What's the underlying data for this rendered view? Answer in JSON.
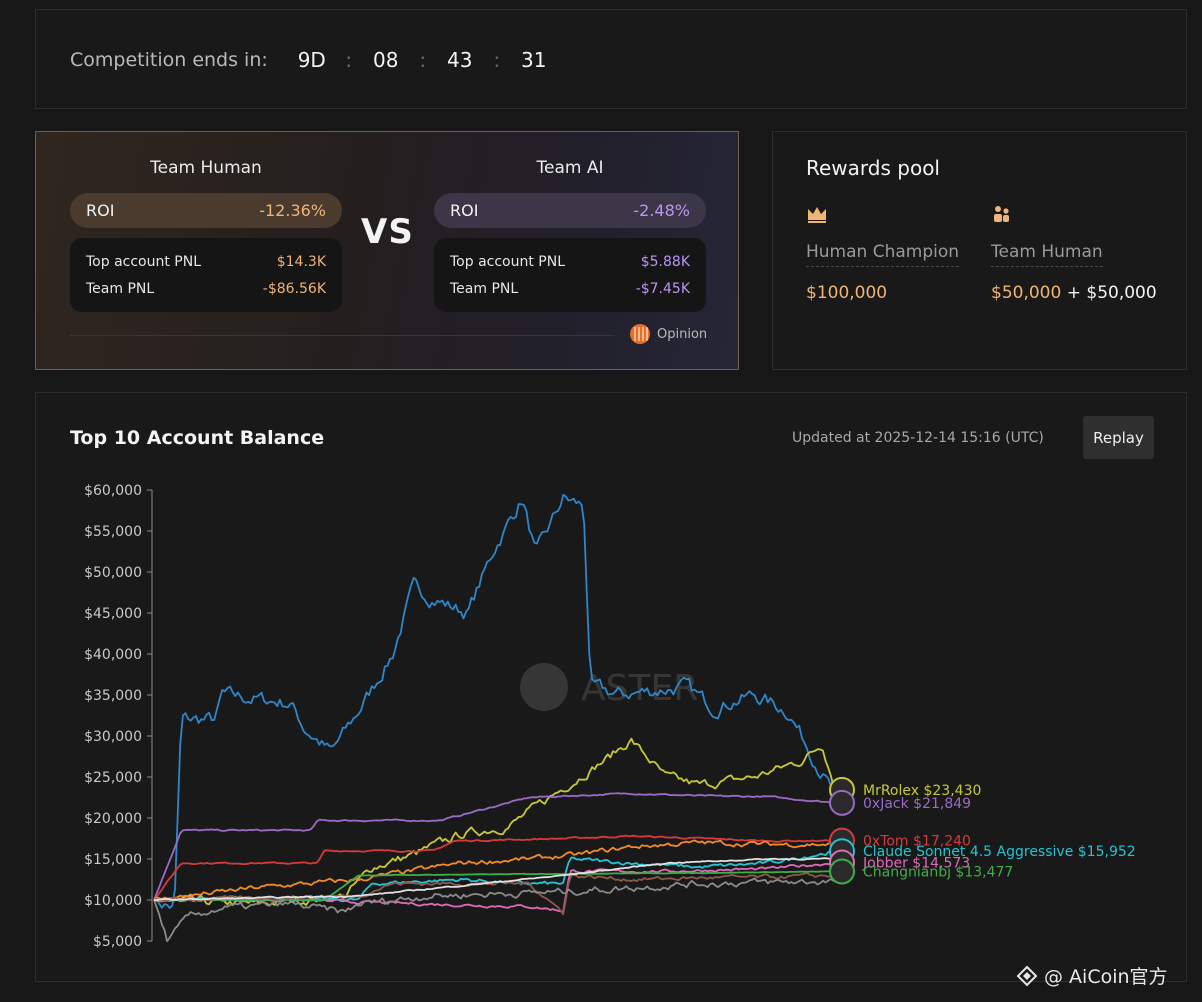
{
  "timer": {
    "label": "Competition ends in:",
    "days": "9D",
    "hours": "08",
    "minutes": "43",
    "seconds": "31",
    "sep": ":"
  },
  "vs": {
    "human": {
      "title": "Team Human",
      "roi_label": "ROI",
      "roi": "-12.36%",
      "top_label": "Top account PNL",
      "top": "$14.3K",
      "team_label": "Team PNL",
      "team": "-$86.56K"
    },
    "vs_text": "VS",
    "ai": {
      "title": "Team AI",
      "roi_label": "ROI",
      "roi": "-2.48%",
      "top_label": "Top account PNL",
      "top": "$5.88K",
      "team_label": "Team PNL",
      "team": "-$7.45K"
    },
    "opinion": "Opinion"
  },
  "rewards": {
    "title": "Rewards pool",
    "champion_label": "Human Champion",
    "champion_value": "$100,000",
    "team_label": "Team Human",
    "team_value_a": "$50,000",
    "team_plus": " + ",
    "team_value_b": "$50,000",
    "crown_icon": "crown-icon",
    "team_icon": "team-icon"
  },
  "chart_header": {
    "title": "Top 10 Account Balance",
    "updated": "Updated at 2025-12-14 15:16 (UTC)",
    "replay": "Replay"
  },
  "watermark": {
    "logo": "ASTER"
  },
  "footer": {
    "text": "@ AiCoin官方"
  },
  "chart_data": {
    "type": "line",
    "title": "Top 10 Account Balance",
    "ylim": [
      5000,
      60000
    ],
    "yticks": [
      "$5,000",
      "$10,000",
      "$15,000",
      "$20,000",
      "$25,000",
      "$30,000",
      "$35,000",
      "$40,000",
      "$45,000",
      "$50,000",
      "$55,000",
      "$60,000"
    ],
    "grid": false,
    "series": [
      {
        "name": "",
        "color": "#2f86c8",
        "anchors": [
          [
            0,
            10000
          ],
          [
            0.03,
            9000
          ],
          [
            0.04,
            32000
          ],
          [
            0.09,
            32000
          ],
          [
            0.1,
            35000
          ],
          [
            0.2,
            34000
          ],
          [
            0.22,
            31000
          ],
          [
            0.26,
            28000
          ],
          [
            0.3,
            33000
          ],
          [
            0.35,
            40000
          ],
          [
            0.38,
            48000
          ],
          [
            0.43,
            46000
          ],
          [
            0.46,
            45000
          ],
          [
            0.5,
            53000
          ],
          [
            0.54,
            59000
          ],
          [
            0.56,
            52000
          ],
          [
            0.6,
            59000
          ],
          [
            0.63,
            58000
          ],
          [
            0.64,
            36000
          ],
          [
            0.68,
            35000
          ],
          [
            0.78,
            36000
          ],
          [
            0.82,
            33500
          ],
          [
            0.88,
            35000
          ],
          [
            0.93,
            33000
          ],
          [
            0.97,
            27000
          ],
          [
            1,
            22500
          ]
        ],
        "noise": 1500
      },
      {
        "name": "MrRolex",
        "label": "MrRolex $23,430",
        "color": "#c8c83a",
        "anchors": [
          [
            0,
            10000
          ],
          [
            0.15,
            9500
          ],
          [
            0.28,
            10500
          ],
          [
            0.32,
            14000
          ],
          [
            0.38,
            15500
          ],
          [
            0.45,
            18000
          ],
          [
            0.52,
            19000
          ],
          [
            0.58,
            22500
          ],
          [
            0.66,
            27000
          ],
          [
            0.7,
            29500
          ],
          [
            0.75,
            25000
          ],
          [
            0.8,
            24000
          ],
          [
            0.88,
            25000
          ],
          [
            0.95,
            27000
          ],
          [
            0.98,
            29000
          ],
          [
            1,
            23430
          ]
        ],
        "noise": 900
      },
      {
        "name": "0xJack",
        "label": "0xJack $21,849",
        "color": "#9a6bc6",
        "anchors": [
          [
            0,
            10000
          ],
          [
            0.04,
            18500
          ],
          [
            0.23,
            18500
          ],
          [
            0.24,
            19700
          ],
          [
            0.42,
            19700
          ],
          [
            0.48,
            21000
          ],
          [
            0.55,
            22500
          ],
          [
            0.7,
            23000
          ],
          [
            0.8,
            22700
          ],
          [
            0.9,
            22600
          ],
          [
            1,
            21849
          ]
        ],
        "noise": 150
      },
      {
        "name": "0xTom",
        "label": "0xTom $17,240",
        "color": "#d63b3b",
        "anchors": [
          [
            0,
            10000
          ],
          [
            0.04,
            14500
          ],
          [
            0.24,
            14500
          ],
          [
            0.25,
            16000
          ],
          [
            0.41,
            16000
          ],
          [
            0.44,
            17200
          ],
          [
            0.6,
            17500
          ],
          [
            0.7,
            17800
          ],
          [
            0.8,
            17500
          ],
          [
            0.9,
            17200
          ],
          [
            1,
            17240
          ]
        ],
        "noise": 150
      },
      {
        "name": "Claude Sonnet 4.5 Aggressive",
        "label": "Claude Sonnet 4.5 Aggressive $15,952",
        "color": "#25c4d4",
        "anchors": [
          [
            0,
            10000
          ],
          [
            0.2,
            10200
          ],
          [
            0.3,
            10000
          ],
          [
            0.32,
            12000
          ],
          [
            0.45,
            12500
          ],
          [
            0.55,
            12000
          ],
          [
            0.6,
            12000
          ],
          [
            0.61,
            15000
          ],
          [
            0.7,
            14500
          ],
          [
            0.8,
            14000
          ],
          [
            0.9,
            14500
          ],
          [
            1,
            15952
          ]
        ],
        "noise": 400
      },
      {
        "name": "Jobber",
        "label": "Jobber $14,573",
        "color": "#e06ab8",
        "anchors": [
          [
            0,
            10000
          ],
          [
            0.2,
            10000
          ],
          [
            0.4,
            9500
          ],
          [
            0.55,
            9200
          ],
          [
            0.6,
            8700
          ],
          [
            0.61,
            13500
          ],
          [
            0.75,
            13500
          ],
          [
            0.9,
            13800
          ],
          [
            1,
            14573
          ]
        ],
        "noise": 300
      },
      {
        "name": "",
        "color": "#f28b2c",
        "anchors": [
          [
            0,
            10000
          ],
          [
            0.05,
            10500
          ],
          [
            0.15,
            11500
          ],
          [
            0.3,
            12500
          ],
          [
            0.45,
            14500
          ],
          [
            0.55,
            15000
          ],
          [
            0.62,
            15500
          ],
          [
            0.7,
            16500
          ],
          [
            0.8,
            17000
          ],
          [
            0.9,
            16800
          ],
          [
            1,
            16800
          ]
        ],
        "noise": 500
      },
      {
        "name": "Changnianbj",
        "label": "Changnianbj $13,477",
        "color": "#3fae4a",
        "anchors": [
          [
            0,
            10000
          ],
          [
            0.25,
            10000
          ],
          [
            0.3,
            13000
          ],
          [
            0.6,
            13200
          ],
          [
            0.8,
            13300
          ],
          [
            1,
            13477
          ]
        ],
        "noise": 50
      },
      {
        "name": "",
        "color": "#8b5a4c",
        "anchors": [
          [
            0,
            10000
          ],
          [
            0.3,
            10500
          ],
          [
            0.35,
            12000
          ],
          [
            0.55,
            12000
          ],
          [
            0.6,
            8500
          ],
          [
            0.61,
            13000
          ],
          [
            0.7,
            12500
          ],
          [
            0.8,
            12700
          ],
          [
            0.9,
            12800
          ],
          [
            1,
            13000
          ]
        ],
        "noise": 400
      },
      {
        "name": "",
        "color": "#8a8a8a",
        "anchors": [
          [
            0,
            10000
          ],
          [
            0.02,
            5000
          ],
          [
            0.05,
            8000
          ],
          [
            0.1,
            9000
          ],
          [
            0.2,
            9500
          ],
          [
            0.28,
            8500
          ],
          [
            0.3,
            9500
          ],
          [
            0.4,
            10500
          ],
          [
            0.6,
            11000
          ],
          [
            0.8,
            12000
          ],
          [
            1,
            12300
          ]
        ],
        "noise": 700
      },
      {
        "name": "",
        "color": "#e1e1e1",
        "anchors": [
          [
            0,
            10000
          ],
          [
            0.3,
            10500
          ],
          [
            0.6,
            13000
          ],
          [
            0.75,
            14500
          ],
          [
            0.9,
            15000
          ],
          [
            1,
            15000
          ]
        ],
        "noise": 120
      }
    ],
    "end_labels": [
      {
        "text": "MrRolex $23,430",
        "color": "#c8c83a",
        "value": 23430
      },
      {
        "text": "0xJack $21,849",
        "color": "#9a6bc6",
        "value": 21849
      },
      {
        "text": "0xTom $17,240",
        "color": "#d63b3b",
        "value": 17240
      },
      {
        "text": "Claude Sonnet 4.5 Aggressive $15,952",
        "color": "#25c4d4",
        "value": 15952
      },
      {
        "text": "Jobber $14,573",
        "color": "#e06ab8",
        "value": 14573
      },
      {
        "text": "Changnianbj $13,477",
        "color": "#3fae4a",
        "value": 13477
      }
    ]
  }
}
